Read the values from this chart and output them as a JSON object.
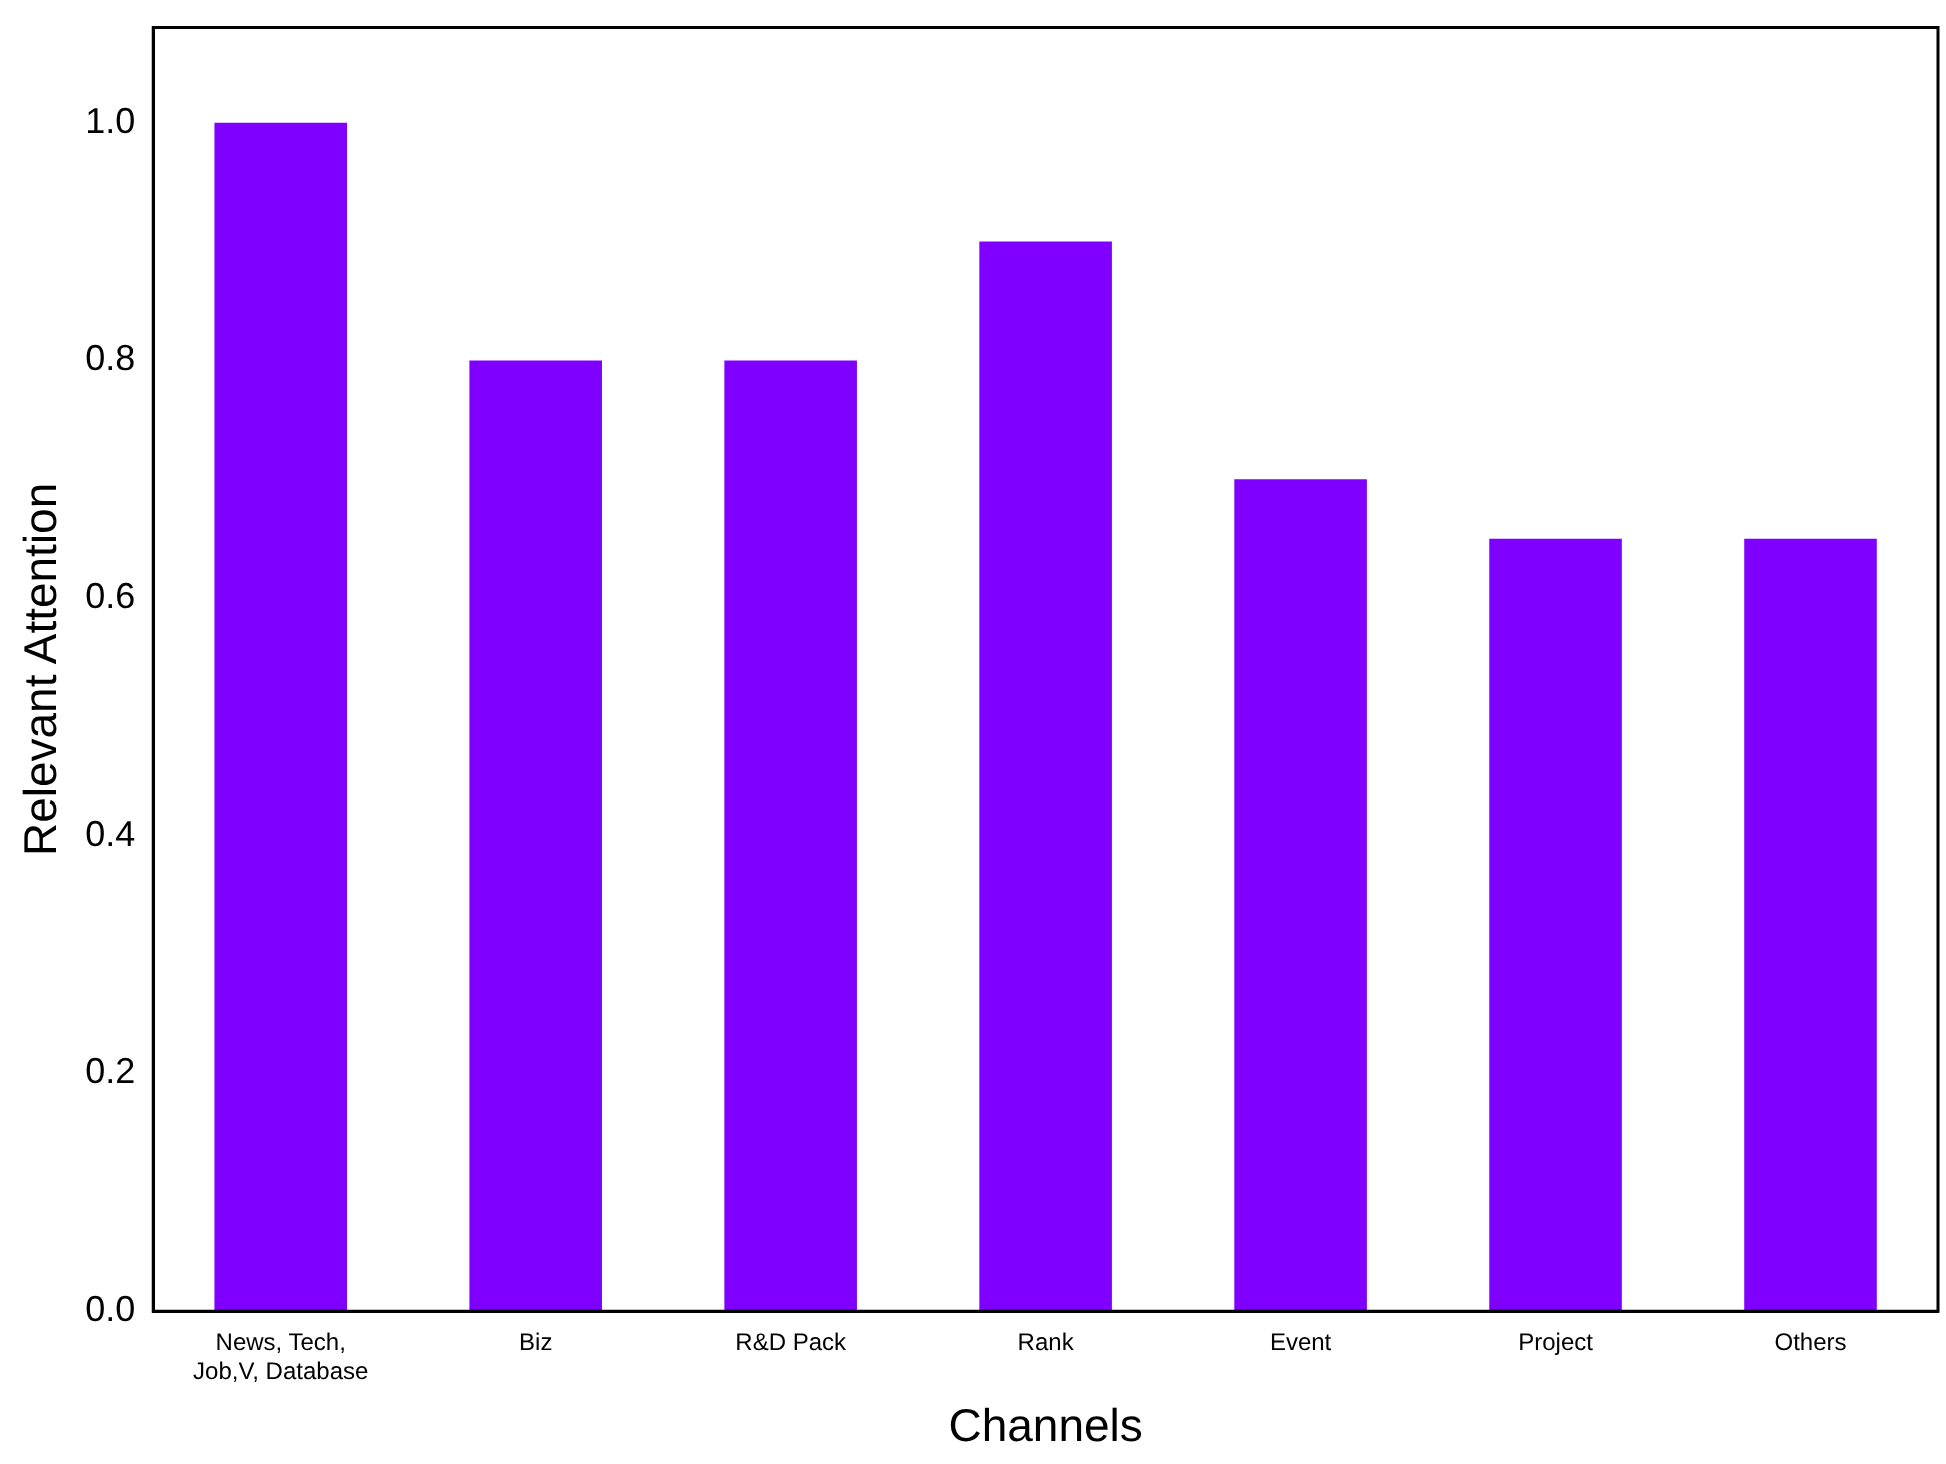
{
  "chart_data": {
    "type": "bar",
    "xlabel": "Channels",
    "ylabel": "Relevant Attention",
    "categories": [
      "News, Tech, Job,V, Database",
      "Biz",
      "R&D Pack",
      "Rank",
      "Event",
      "Project",
      "Others"
    ],
    "values": [
      1.0,
      0.8,
      0.8,
      0.9,
      0.7,
      0.65,
      0.65
    ],
    "color": "#8000ff",
    "ylim": [
      0,
      1.08
    ],
    "yticks": [
      {
        "value": 0,
        "label": "0.0"
      },
      {
        "value": 0.2,
        "label": "0.2"
      },
      {
        "value": 0.4,
        "label": "0.4"
      },
      {
        "value": 0.6,
        "label": "0.6"
      },
      {
        "value": 0.8,
        "label": "0.8"
      },
      {
        "value": 1.0,
        "label": "1.0"
      }
    ],
    "grid": false,
    "legend": false
  }
}
